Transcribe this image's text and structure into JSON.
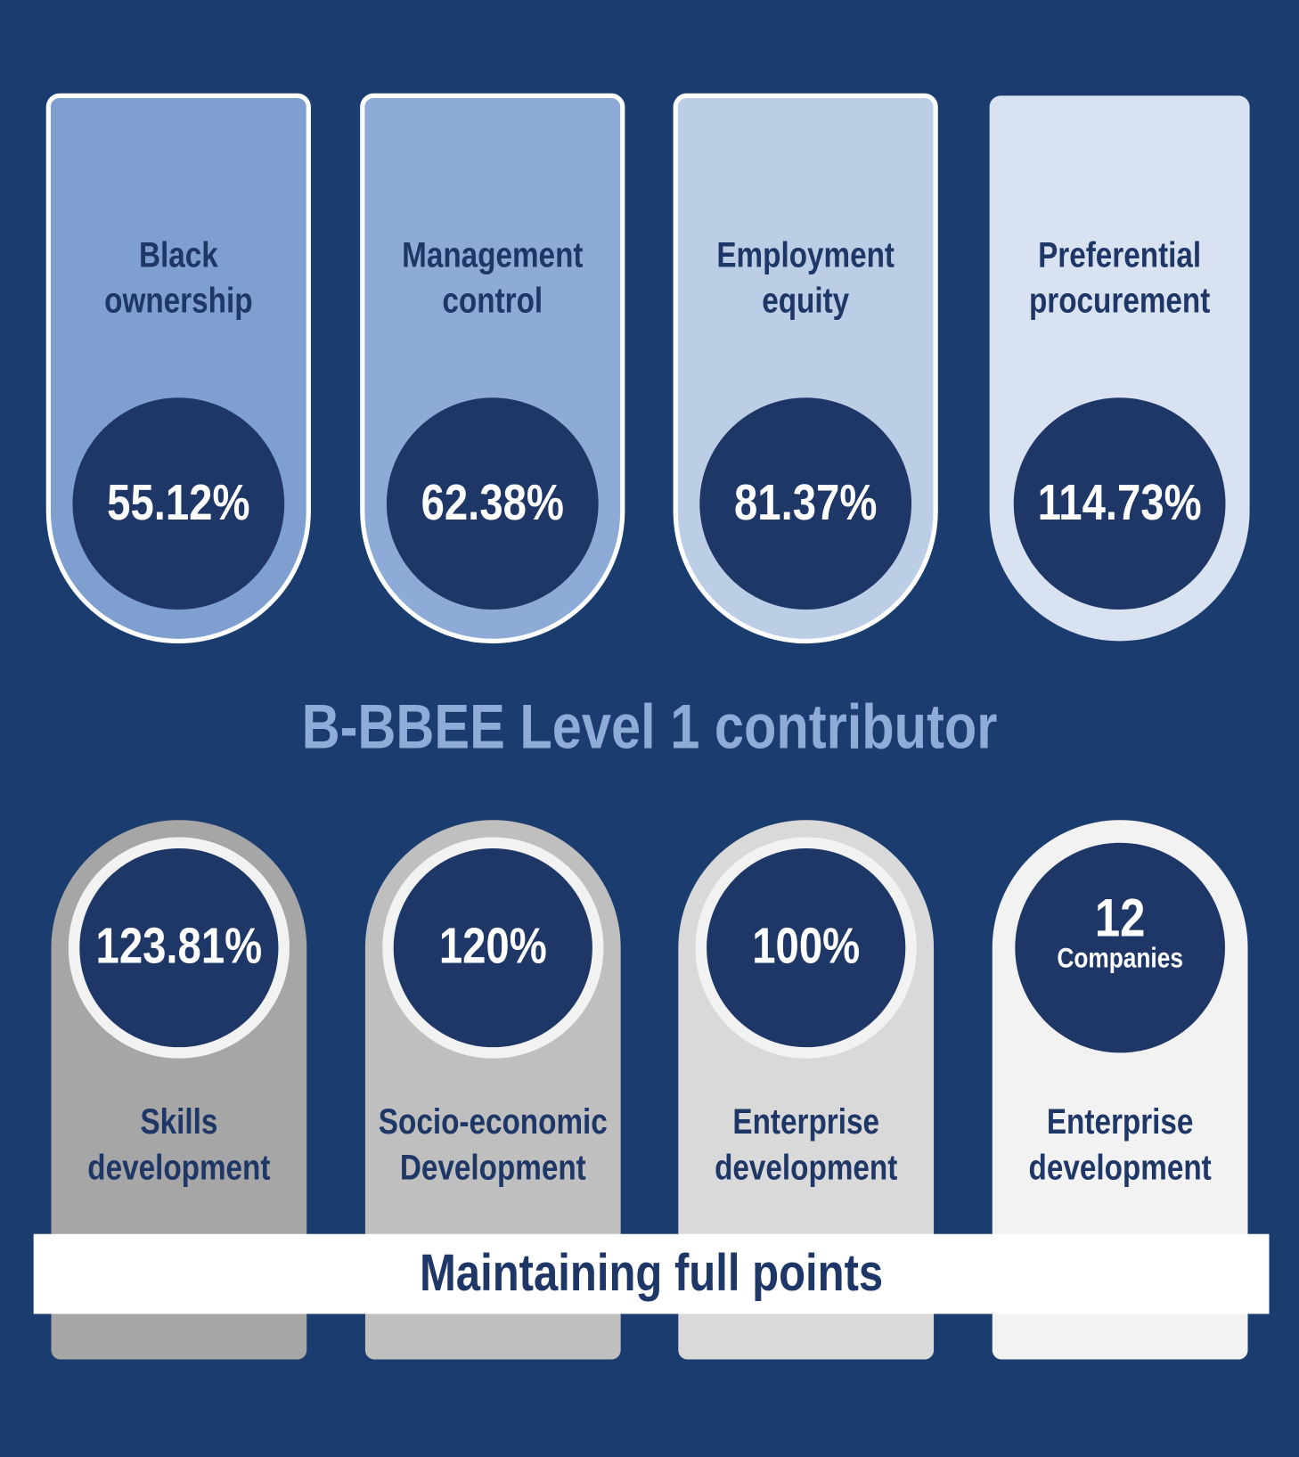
{
  "top_cards": [
    {
      "label": [
        "Black",
        "ownership"
      ],
      "value": "55.12%",
      "color": "#7f9fd0",
      "border": true
    },
    {
      "label": [
        "Management",
        "control"
      ],
      "value": "62.38%",
      "color": "#8eabd8",
      "border": true
    },
    {
      "label": [
        "Employment",
        "equity"
      ],
      "value": "81.37%",
      "color": "#bccde6",
      "border": true
    },
    {
      "label": [
        "Preferential",
        "procurement"
      ],
      "value": "114.73%",
      "color": "#d9e2f1",
      "border": false
    }
  ],
  "heading": "B-BBEE Level 1 contributor",
  "bottom_cards": [
    {
      "label": [
        "Skills",
        "development"
      ],
      "value": "123.81%",
      "color": "#a6a6a6",
      "ring": true
    },
    {
      "label": [
        "Socio-economic",
        "Development"
      ],
      "value": "120%",
      "color": "#bfbfbf",
      "ring": true
    },
    {
      "label": [
        "Enterprise",
        "development"
      ],
      "value": "100%",
      "color": "#d9d9d9",
      "ring": true
    },
    {
      "label": [
        "Enterprise",
        "development"
      ],
      "value": "12",
      "unit": "Companies",
      "color": "#f2f2f2",
      "ring": false
    }
  ],
  "banner": "Maintaining full points"
}
